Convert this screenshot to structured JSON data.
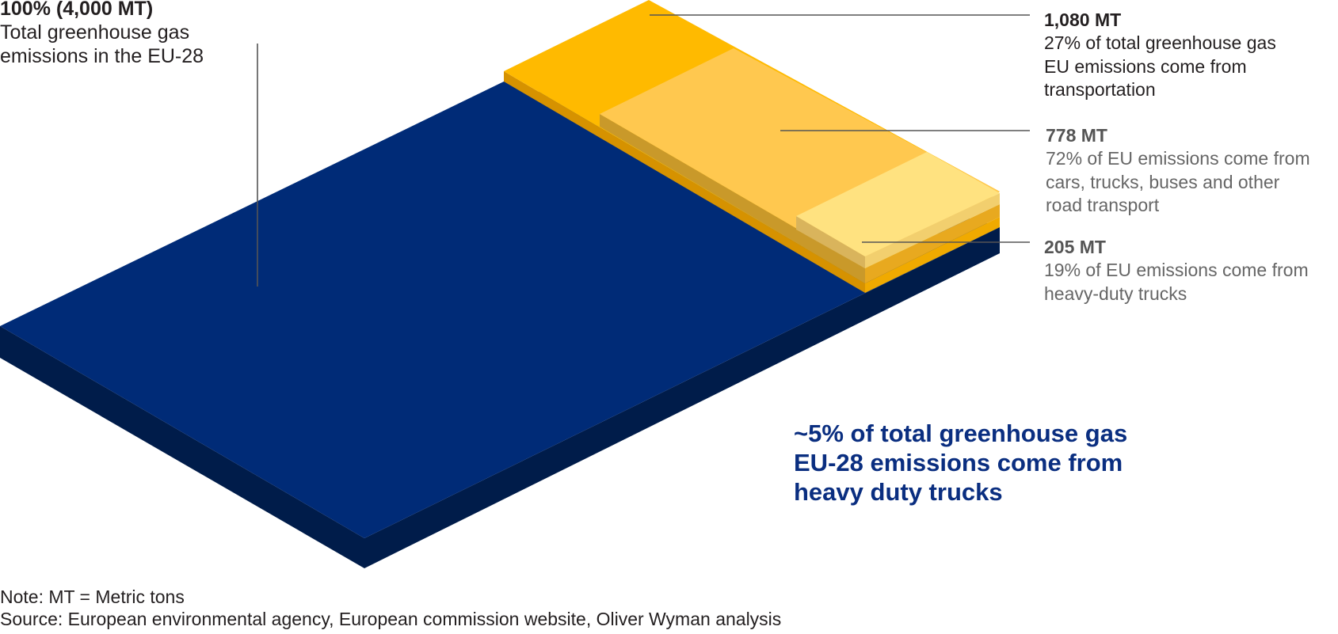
{
  "title": "",
  "total": {
    "value": "100% (4,000 MT)",
    "description_line1": "Total greenhouse gas",
    "description_line2": "emissions in the EU-28"
  },
  "transport": {
    "value": "1,080 MT",
    "description_line1": "27% of total greenhouse gas",
    "description_line2": "EU emissions come from",
    "description_line3": "transportation"
  },
  "road": {
    "value": "778 MT",
    "description_line1": "72% of EU emissions come from",
    "description_line2": "cars, trucks, buses and other",
    "description_line3": "road transport"
  },
  "heavy_duty": {
    "value": "205 MT",
    "description_line1": "19% of EU emissions come from",
    "description_line2": "heavy-duty trucks"
  },
  "headline": {
    "line1": "~5% of total greenhouse gas",
    "line2": "EU-28 emissions come from",
    "line3": "heavy duty trucks"
  },
  "footnotes": {
    "note": "Note: MT = Metric tons",
    "source": "Source: European environmental agency, European commission website, Oliver Wyman analysis"
  },
  "colors": {
    "total_top": "#002b77",
    "total_side": "#001c4a",
    "transport_top": "#ffba00",
    "transport_side": "#d69200",
    "road_top": "#ffc84f",
    "road_side": "#e8a91f",
    "hdt_top": "#ffe280",
    "hdt_side": "#d9b45c",
    "leader_line": "#555555",
    "headline": "#0a2e80"
  }
}
